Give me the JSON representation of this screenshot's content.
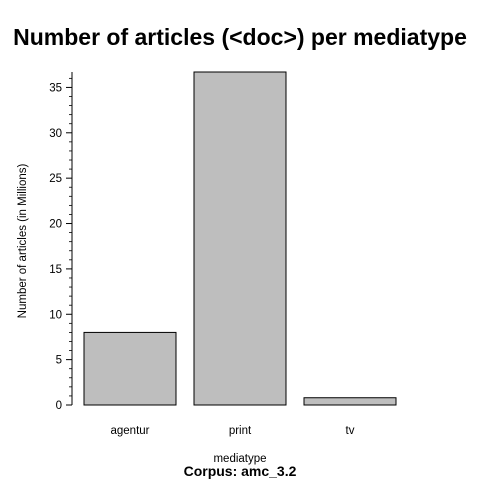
{
  "chart_data": {
    "type": "bar",
    "title": "Number of articles (<doc>) per mediatype",
    "xlabel": "mediatype",
    "ylabel": "Number of articles (in Millions)",
    "caption": "Corpus: amc_3.2",
    "categories": [
      "agentur",
      "print",
      "tv"
    ],
    "values": [
      8.0,
      36.7,
      0.8
    ],
    "ylim": [
      0,
      36.7
    ],
    "yticks": [
      0,
      5,
      10,
      15,
      20,
      25,
      30,
      35
    ],
    "bar_color": "#bebebe",
    "grid": false,
    "legend": "none"
  }
}
